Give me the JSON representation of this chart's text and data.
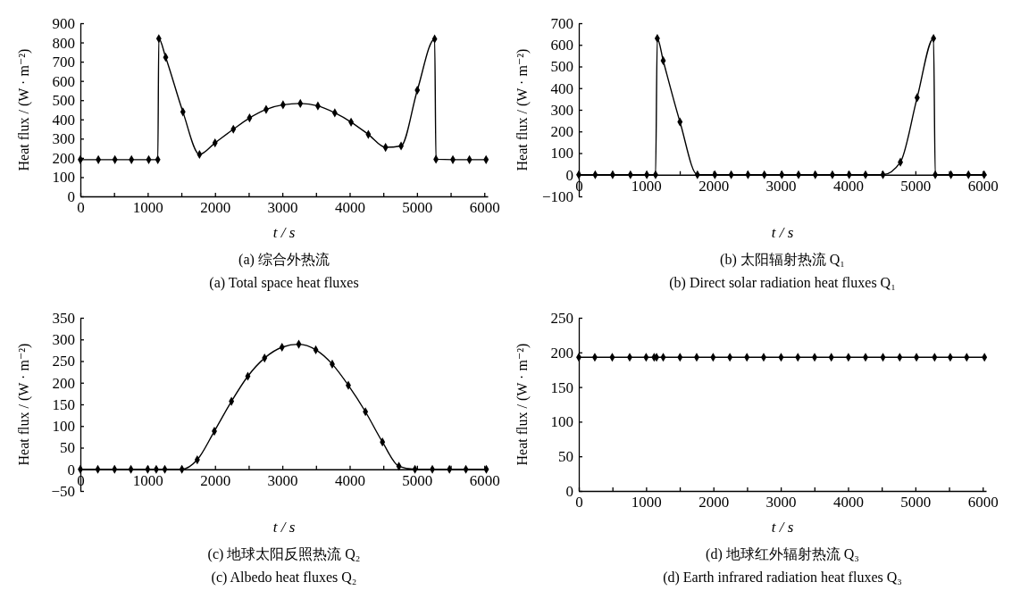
{
  "chart_data": [
    {
      "type": "line",
      "title": "(a) 综合外热流",
      "subtitle": "(a) Total space heat fluxes",
      "xlabel": "t / s",
      "ylabel": "Heat flux / (W · m⁻²)",
      "marker": "diamond",
      "line_style": "solid",
      "xlim": [
        0,
        6050
      ],
      "ylim": [
        0,
        900
      ],
      "xticks": [
        0,
        {
          "value": 500,
          "label": null
        },
        1000,
        {
          "value": 1500,
          "label": null
        },
        2000,
        {
          "value": 2500,
          "label": null
        },
        3000,
        {
          "value": 3500,
          "label": null
        },
        4000,
        {
          "value": 4500,
          "label": null
        },
        5000,
        {
          "value": 5500,
          "label": null
        },
        6000
      ],
      "yticks": [
        0,
        100,
        200,
        300,
        400,
        500,
        600,
        700,
        800,
        900
      ],
      "x": [
        0,
        267,
        513,
        759,
        1015,
        1150,
        1165,
        1267,
        1523,
        1769,
        2000,
        2272,
        2513,
        2759,
        3010,
        3267,
        3528,
        3779,
        4021,
        4277,
        4533,
        4764,
        5005,
        5262,
        5282,
        5533,
        5779,
        6026
      ],
      "series": [
        {
          "color": "#000000",
          "values": [
            191,
            191,
            191,
            191,
            191,
            191,
            820,
            723,
            439,
            218,
            278,
            349,
            408,
            452,
            476,
            483,
            470,
            434,
            386,
            322,
            255,
            262,
            552,
            818,
            193,
            191,
            191,
            191
          ]
        }
      ]
    },
    {
      "type": "line",
      "title": "(b) 太阳辐射热流 Q₁",
      "subtitle": "(b) Direct solar radiation heat fluxes Q₁",
      "xlabel": "t / s",
      "ylabel": "Heat flux / (W · m⁻²)",
      "marker": "diamond",
      "line_style": "solid",
      "xlim": [
        0,
        6050
      ],
      "ylim": [
        -100,
        700
      ],
      "xticks": [
        0,
        {
          "value": 500,
          "label": null
        },
        1000,
        {
          "value": 1500,
          "label": null
        },
        2000,
        {
          "value": 2500,
          "label": null
        },
        3000,
        {
          "value": 3500,
          "label": null
        },
        4000,
        {
          "value": 4500,
          "label": null
        },
        5000,
        {
          "value": 5500,
          "label": null
        },
        6000
      ],
      "yticks": [
        {
          "value": -100,
          "label": "−100"
        },
        0,
        100,
        200,
        300,
        400,
        500,
        600,
        700
      ],
      "x": [
        0,
        244,
        503,
        767,
        1010,
        1140,
        1166,
        1254,
        1503,
        1762,
        2021,
        2264,
        2513,
        2756,
        3016,
        3264,
        3513,
        3767,
        4016,
        4259,
        4518,
        4777,
        5026,
        5269,
        5295,
        5528,
        5788,
        6021
      ],
      "series": [
        {
          "color": "#000000",
          "values": [
            0,
            0,
            0,
            0,
            0,
            0,
            630,
            527,
            244,
            0,
            0,
            0,
            0,
            0,
            0,
            0,
            0,
            0,
            0,
            0,
            0,
            58,
            356,
            630,
            0,
            0,
            0,
            0
          ]
        }
      ]
    },
    {
      "type": "line",
      "title": "(c) 地球太阳反照热流 Q₂",
      "subtitle": "(c) Albedo heat fluxes Q₂",
      "xlabel": "t / s",
      "ylabel": "Heat flux / (W · m⁻²)",
      "marker": "diamond",
      "line_style": "solid",
      "xlim": [
        0,
        6050
      ],
      "ylim": [
        -50,
        350
      ],
      "xticks": [
        0,
        {
          "value": 500,
          "label": null
        },
        1000,
        {
          "value": 1500,
          "label": null
        },
        2000,
        {
          "value": 2500,
          "label": null
        },
        3000,
        {
          "value": 3500,
          "label": null
        },
        4000,
        {
          "value": 4500,
          "label": null
        },
        5000,
        {
          "value": 5500,
          "label": null
        },
        6000
      ],
      "yticks": [
        {
          "value": -50,
          "label": "−50"
        },
        0,
        50,
        100,
        150,
        200,
        250,
        300,
        350
      ],
      "x": [
        0,
        259,
        508,
        751,
        1000,
        1127,
        1254,
        1508,
        1736,
        1990,
        2244,
        2487,
        2736,
        2995,
        3244,
        3497,
        3741,
        3980,
        4234,
        4487,
        4731,
        4970,
        5228,
        5482,
        5726,
        6030
      ],
      "series": [
        {
          "color": "#000000",
          "values": [
            0,
            0,
            0,
            0,
            0,
            0,
            0,
            0,
            22,
            88,
            157,
            215,
            257,
            282,
            289,
            276,
            243,
            194,
            133,
            63,
            7,
            0,
            0,
            0,
            0,
            0
          ]
        }
      ]
    },
    {
      "type": "line",
      "title": "(d) 地球红外辐射热流 Q₃",
      "subtitle": "(d) Earth infrared radiation heat fluxes Q₃",
      "xlabel": "t / s",
      "ylabel": "Heat flux / (W · m⁻²)",
      "marker": "diamond",
      "line_style": "solid",
      "xlim": [
        0,
        6050
      ],
      "ylim": [
        0,
        250
      ],
      "xticks": [
        0,
        {
          "value": 500,
          "label": null
        },
        1000,
        {
          "value": 1500,
          "label": null
        },
        2000,
        {
          "value": 2500,
          "label": null
        },
        3000,
        {
          "value": 3500,
          "label": null
        },
        4000,
        {
          "value": 4500,
          "label": null
        },
        5000,
        {
          "value": 5500,
          "label": null
        },
        6000
      ],
      "yticks": [
        0,
        50,
        100,
        150,
        200,
        250
      ],
      "x": [
        0,
        238,
        497,
        756,
        1000,
        1119,
        1155,
        1254,
        1503,
        1751,
        1995,
        2244,
        2497,
        2746,
        3005,
        3254,
        3503,
        3751,
        4005,
        4259,
        4518,
        4767,
        5016,
        5269,
        5285,
        5518,
        5762,
        6026
      ],
      "series": [
        {
          "color": "#000000",
          "values": [
            193,
            193,
            193,
            193,
            193,
            193,
            193,
            193,
            193,
            193,
            193,
            193,
            193,
            193,
            193,
            193,
            193,
            193,
            193,
            193,
            193,
            193,
            193,
            null,
            193,
            193,
            193,
            193
          ]
        }
      ]
    }
  ]
}
